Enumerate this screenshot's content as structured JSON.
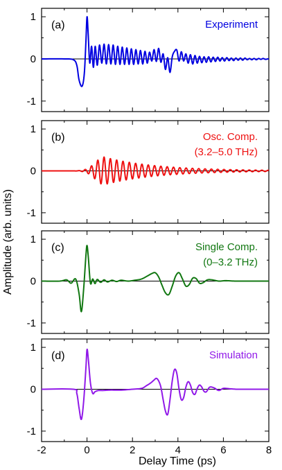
{
  "figure": {
    "xlabel": "Delay Time (ps)",
    "ylabel": "Amplitude (arb. units)"
  },
  "chart_data": [
    {
      "type": "line",
      "panel_label": "(a)",
      "legend": [
        "Experiment"
      ],
      "color": "#0000e0",
      "xlim": [
        -2,
        8
      ],
      "ylim": [
        -1.25,
        1.2
      ],
      "xticks": [
        -2,
        0,
        2,
        4,
        6,
        8
      ],
      "yticks": [
        -1,
        0,
        1
      ],
      "ytick_labels": [
        "-1",
        "0",
        "1"
      ],
      "grid": false,
      "legend_position": "top-right",
      "series": [
        {
          "x": [
            -2.0,
            -1.0,
            -0.6,
            -0.45,
            -0.35,
            -0.22,
            -0.12,
            -0.05,
            0.0,
            0.05,
            0.12,
            0.2,
            0.28,
            0.36,
            0.45,
            0.55,
            0.65,
            0.75,
            0.85,
            0.95,
            1.05,
            1.15,
            1.25,
            1.35,
            1.45,
            1.55,
            1.65,
            1.75,
            1.85,
            1.95,
            2.05,
            2.15,
            2.25,
            2.35,
            2.45,
            2.55,
            2.65,
            2.75,
            2.85,
            2.95,
            3.05,
            3.15,
            3.25,
            3.35,
            3.45,
            3.55,
            3.65,
            3.75,
            3.85,
            3.95,
            4.05,
            4.15,
            4.25,
            4.35,
            4.45,
            4.55,
            4.65,
            4.75,
            4.85,
            4.95,
            5.05,
            5.15,
            5.25,
            5.35,
            5.45,
            5.55,
            5.65,
            5.75,
            5.85,
            5.95,
            6.05,
            6.15,
            6.25,
            6.35,
            6.45,
            6.55,
            6.65,
            6.75,
            6.85,
            6.95,
            7.05,
            7.15,
            7.25,
            7.35,
            7.45,
            7.55,
            7.65,
            7.75,
            7.85,
            7.95,
            8.0
          ],
          "y": [
            0.0,
            0.0,
            -0.02,
            -0.15,
            -0.5,
            -0.65,
            -0.35,
            0.4,
            1.0,
            0.6,
            -0.1,
            0.3,
            -0.2,
            0.3,
            -0.15,
            0.33,
            -0.1,
            0.35,
            -0.12,
            0.34,
            -0.12,
            0.33,
            -0.13,
            0.3,
            -0.13,
            0.28,
            -0.13,
            0.26,
            -0.13,
            0.24,
            -0.13,
            0.22,
            -0.12,
            0.2,
            -0.12,
            0.18,
            -0.1,
            0.16,
            -0.05,
            0.22,
            -0.06,
            0.25,
            -0.08,
            0.12,
            -0.25,
            0.03,
            -0.32,
            0.05,
            0.18,
            0.21,
            -0.05,
            0.17,
            -0.05,
            0.12,
            -0.1,
            0.1,
            -0.12,
            0.08,
            -0.1,
            0.06,
            -0.09,
            0.05,
            -0.08,
            0.05,
            -0.07,
            0.04,
            -0.06,
            0.04,
            -0.05,
            0.03,
            -0.05,
            0.03,
            -0.04,
            0.02,
            -0.04,
            0.02,
            -0.03,
            0.02,
            -0.03,
            0.02,
            -0.02,
            0.01,
            -0.02,
            0.01,
            -0.02,
            0.01,
            -0.01,
            0.01,
            -0.01,
            0.0,
            0.0
          ]
        }
      ]
    },
    {
      "type": "line",
      "panel_label": "(b)",
      "legend": [
        "Osc. Comp.",
        "(3.2–5.0 THz)"
      ],
      "color": "#ee1111",
      "xlim": [
        -2,
        8
      ],
      "ylim": [
        -1.25,
        1.2
      ],
      "xticks": [
        -2,
        0,
        2,
        4,
        6,
        8
      ],
      "yticks": [
        -1,
        0,
        1
      ],
      "ytick_labels": [
        "-1",
        "0",
        "1"
      ],
      "grid": false,
      "legend_position": "top-right",
      "osc_model": {
        "frequency_thz": 3.6,
        "peak_amplitude": 0.33,
        "center_ps": 0.75,
        "rise_width_ps": 0.55,
        "decay_ps": 2.3,
        "onset_ps": -1.5,
        "end_ps": 8.0
      }
    },
    {
      "type": "line",
      "panel_label": "(c)",
      "legend": [
        "Single Comp.",
        "(0–3.2 THz)"
      ],
      "color": "#117711",
      "xlim": [
        -2,
        8
      ],
      "ylim": [
        -1.25,
        1.2
      ],
      "xticks": [
        -2,
        0,
        2,
        4,
        6,
        8
      ],
      "yticks": [
        -1,
        0,
        1
      ],
      "ytick_labels": [
        "-1",
        "0",
        "1"
      ],
      "grid": false,
      "legend_position": "top-right",
      "series": [
        {
          "x": [
            -2.0,
            -1.2,
            -0.9,
            -0.7,
            -0.5,
            -0.35,
            -0.25,
            -0.15,
            -0.05,
            0.0,
            0.06,
            0.15,
            0.25,
            0.35,
            0.45,
            0.6,
            0.75,
            0.9,
            1.1,
            1.3,
            1.5,
            1.8,
            2.1,
            2.4,
            2.65,
            2.85,
            3.0,
            3.15,
            3.3,
            3.45,
            3.6,
            3.75,
            3.9,
            4.05,
            4.2,
            4.35,
            4.5,
            4.65,
            4.8,
            4.95,
            5.1,
            5.3,
            5.5,
            5.8,
            6.1,
            6.5,
            7.0,
            7.5,
            8.0
          ],
          "y": [
            0.0,
            0.0,
            0.03,
            -0.05,
            0.05,
            -0.3,
            -0.73,
            -0.2,
            0.6,
            0.85,
            0.55,
            -0.05,
            0.05,
            -0.06,
            0.04,
            -0.03,
            0.03,
            -0.02,
            0.02,
            -0.01,
            0.02,
            0.0,
            0.02,
            0.05,
            0.12,
            0.18,
            0.2,
            0.1,
            -0.1,
            -0.28,
            -0.32,
            -0.12,
            0.12,
            0.2,
            0.05,
            -0.12,
            -0.08,
            0.07,
            0.06,
            -0.05,
            -0.04,
            0.03,
            0.03,
            0.0,
            0.01,
            0.0,
            0.0,
            0.0,
            0.0
          ]
        }
      ]
    },
    {
      "type": "line",
      "panel_label": "(d)",
      "legend": [
        "Simulation"
      ],
      "color": "#9018e8",
      "xlim": [
        -2,
        8
      ],
      "ylim": [
        -1.25,
        1.2
      ],
      "xticks": [
        -2,
        0,
        2,
        4,
        6,
        8
      ],
      "yticks": [
        -1,
        0,
        1
      ],
      "ytick_labels": [
        "-1",
        "0",
        "1"
      ],
      "grid": false,
      "legend_position": "top-right",
      "series": [
        {
          "x": [
            -2.0,
            -0.6,
            -0.45,
            -0.35,
            -0.25,
            -0.15,
            -0.05,
            0.0,
            0.06,
            0.15,
            0.25,
            0.35,
            0.5,
            0.7,
            1.0,
            1.5,
            2.0,
            2.4,
            2.6,
            2.8,
            2.95,
            3.05,
            3.15,
            3.25,
            3.35,
            3.45,
            3.55,
            3.65,
            3.75,
            3.85,
            3.95,
            4.05,
            4.15,
            4.25,
            4.35,
            4.45,
            4.55,
            4.65,
            4.75,
            4.85,
            4.95,
            5.05,
            5.15,
            5.25,
            5.4,
            5.6,
            5.8,
            6.0,
            6.3,
            6.6,
            7.0,
            7.5,
            8.0
          ],
          "y": [
            0.0,
            0.0,
            -0.1,
            -0.45,
            -0.72,
            -0.3,
            0.5,
            0.95,
            0.7,
            0.15,
            -0.1,
            -0.06,
            -0.03,
            -0.03,
            -0.02,
            -0.02,
            0.0,
            0.02,
            0.08,
            0.15,
            0.22,
            0.26,
            0.2,
            0.05,
            -0.25,
            -0.52,
            -0.6,
            -0.25,
            0.2,
            0.47,
            0.38,
            0.0,
            -0.25,
            -0.2,
            0.05,
            0.18,
            0.1,
            -0.08,
            -0.12,
            0.02,
            0.1,
            0.05,
            -0.05,
            -0.06,
            0.05,
            0.03,
            -0.03,
            0.02,
            0.01,
            0.0,
            0.0,
            0.0,
            0.0
          ]
        }
      ]
    }
  ]
}
